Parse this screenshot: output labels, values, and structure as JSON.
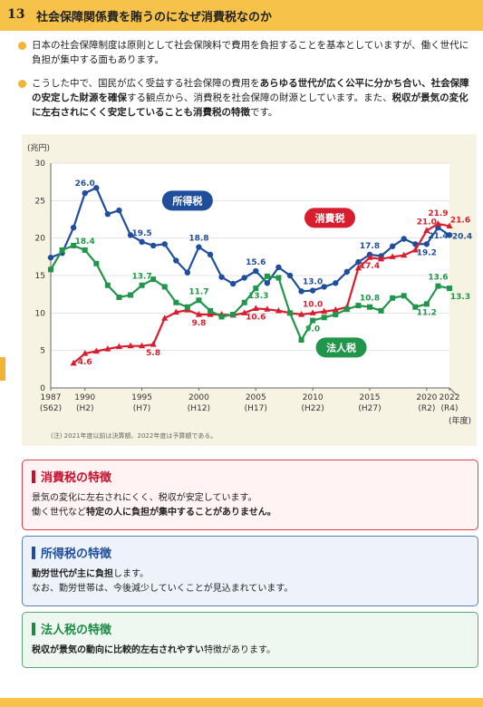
{
  "header": {
    "number": "13",
    "title": "社会保障関係費を賄うのになぜ消費税なのか"
  },
  "bullets": [
    {
      "parts": [
        {
          "t": "日本の社会保障制度は原則として社会保険料で費用を負担することを基本としていますが、働く世代に負担が集中する面もあります。",
          "b": false
        }
      ]
    },
    {
      "parts": [
        {
          "t": "こうした中で、国民が広く受益する社会保障の費用を",
          "b": false
        },
        {
          "t": "あらゆる世代が広く公平に分かち合い、社会保障の安定した財源を確保",
          "b": true
        },
        {
          "t": "する観点から、消費税を社会保障の財源としています。また、",
          "b": false
        },
        {
          "t": "税収が景気の変化に左右されにくく安定していることも消費税の特徴",
          "b": true
        },
        {
          "t": "です。",
          "b": false
        }
      ]
    }
  ],
  "chart_data": {
    "type": "line",
    "y_unit": "(兆円)",
    "x_unit": "(年度)",
    "ylim": [
      0,
      30
    ],
    "yticks": [
      0,
      5,
      10,
      15,
      20,
      25,
      30
    ],
    "xlim": [
      1987,
      2022
    ],
    "xticks": [
      {
        "x": 1987,
        "l1": "1987",
        "l2": "(S62)"
      },
      {
        "x": 1990,
        "l1": "1990",
        "l2": "(H2)"
      },
      {
        "x": 1995,
        "l1": "1995",
        "l2": "(H7)"
      },
      {
        "x": 2000,
        "l1": "2000",
        "l2": "(H12)"
      },
      {
        "x": 2005,
        "l1": "2005",
        "l2": "(H17)"
      },
      {
        "x": 2010,
        "l1": "2010",
        "l2": "(H22)"
      },
      {
        "x": 2015,
        "l1": "2015",
        "l2": "(H27)"
      },
      {
        "x": 2020,
        "l1": "2020",
        "l2": "(R2)"
      },
      {
        "x": 2022,
        "l1": "2022",
        "l2": "(R4)"
      }
    ],
    "note": "(注) 2021年度以前は決算額、2022年度は予算額である。",
    "series": [
      {
        "name": "所得税",
        "color": "#1f4e9c",
        "marker": "circle",
        "legend_pos": [
          1999,
          25.0
        ],
        "x": [
          1987,
          1988,
          1989,
          1990,
          1991,
          1992,
          1993,
          1994,
          1995,
          1996,
          1997,
          1998,
          1999,
          2000,
          2001,
          2002,
          2003,
          2004,
          2005,
          2006,
          2007,
          2008,
          2009,
          2010,
          2011,
          2012,
          2013,
          2014,
          2015,
          2016,
          2017,
          2018,
          2019,
          2020,
          2021,
          2022
        ],
        "values": [
          17.4,
          18.0,
          21.4,
          26.0,
          26.7,
          23.2,
          23.7,
          20.4,
          19.5,
          19.0,
          19.2,
          17.0,
          15.4,
          18.8,
          17.8,
          14.8,
          13.9,
          14.7,
          15.6,
          14.0,
          16.1,
          15.0,
          12.9,
          13.0,
          13.5,
          14.0,
          15.5,
          16.8,
          17.8,
          17.6,
          18.9,
          19.9,
          19.2,
          19.2,
          21.4,
          20.4
        ],
        "labels": [
          {
            "i": 3,
            "t": "26.0",
            "dy": -8
          },
          {
            "i": 8,
            "t": "19.5",
            "dy": -7
          },
          {
            "i": 13,
            "t": "18.8",
            "dy": -7
          },
          {
            "i": 18,
            "t": "15.6",
            "dy": -7
          },
          {
            "i": 23,
            "t": "13.0",
            "dy": -7
          },
          {
            "i": 28,
            "t": "17.8",
            "dy": -7
          },
          {
            "i": 33,
            "t": "19.2",
            "dy": 12
          },
          {
            "i": 34,
            "t": "21.4",
            "dy": 12
          },
          {
            "i": 35,
            "t": "20.4",
            "dx": 14,
            "dy": 4
          }
        ]
      },
      {
        "name": "消費税",
        "color": "#d81e2e",
        "marker": "triangle",
        "legend_pos": [
          2011.5,
          22.7
        ],
        "x": [
          1989,
          1990,
          1991,
          1992,
          1993,
          1994,
          1995,
          1996,
          1997,
          1998,
          1999,
          2000,
          2001,
          2002,
          2003,
          2004,
          2005,
          2006,
          2007,
          2008,
          2009,
          2010,
          2011,
          2012,
          2013,
          2014,
          2015,
          2016,
          2017,
          2018,
          2019,
          2020,
          2021,
          2022
        ],
        "values": [
          3.3,
          4.6,
          4.9,
          5.2,
          5.5,
          5.6,
          5.6,
          5.8,
          9.3,
          10.1,
          10.4,
          9.8,
          9.8,
          9.8,
          9.7,
          10.0,
          10.6,
          10.5,
          10.3,
          10.0,
          9.8,
          10.0,
          10.2,
          10.4,
          10.8,
          16.0,
          17.4,
          17.2,
          17.5,
          17.7,
          18.4,
          21.0,
          21.9,
          21.6
        ],
        "labels": [
          {
            "i": 1,
            "t": "4.6",
            "dy": 12
          },
          {
            "i": 7,
            "t": "5.8",
            "dy": 12
          },
          {
            "i": 11,
            "t": "9.8",
            "dy": 12
          },
          {
            "i": 16,
            "t": "10.6",
            "dy": 12
          },
          {
            "i": 21,
            "t": "10.0",
            "dy": -7
          },
          {
            "i": 26,
            "t": "17.4",
            "dy": 12
          },
          {
            "i": 31,
            "t": "21.0",
            "dy": -7
          },
          {
            "i": 32,
            "t": "21.9",
            "dy": -9
          },
          {
            "i": 33,
            "t": "21.6",
            "dx": 12,
            "dy": -4
          }
        ]
      },
      {
        "name": "法人税",
        "color": "#21964b",
        "marker": "square",
        "legend_pos": [
          2012.5,
          5.4
        ],
        "x": [
          1987,
          1988,
          1989,
          1990,
          1991,
          1992,
          1993,
          1994,
          1995,
          1996,
          1997,
          1998,
          1999,
          2000,
          2001,
          2002,
          2003,
          2004,
          2005,
          2006,
          2007,
          2008,
          2009,
          2010,
          2011,
          2012,
          2013,
          2014,
          2015,
          2016,
          2017,
          2018,
          2019,
          2020,
          2021,
          2022
        ],
        "values": [
          15.8,
          18.4,
          19.0,
          18.4,
          16.6,
          13.7,
          12.1,
          12.4,
          13.7,
          14.5,
          13.5,
          11.4,
          10.8,
          11.7,
          10.3,
          9.5,
          9.8,
          11.4,
          13.3,
          14.9,
          14.7,
          10.0,
          6.4,
          9.0,
          9.4,
          9.8,
          10.5,
          11.0,
          10.8,
          10.3,
          12.0,
          12.3,
          10.8,
          11.2,
          13.6,
          13.3
        ],
        "labels": [
          {
            "i": 3,
            "t": "18.4",
            "dy": -7
          },
          {
            "i": 8,
            "t": "13.7",
            "dy": -7
          },
          {
            "i": 13,
            "t": "11.7",
            "dy": -7
          },
          {
            "i": 18,
            "t": "13.3",
            "dy": 11,
            "dx": 3
          },
          {
            "i": 23,
            "t": "9.0",
            "dy": 12
          },
          {
            "i": 28,
            "t": "10.8",
            "dy": -7
          },
          {
            "i": 33,
            "t": "11.2",
            "dy": 12
          },
          {
            "i": 34,
            "t": "13.6",
            "dy": -7
          },
          {
            "i": 35,
            "t": "13.3",
            "dx": 12,
            "dy": 12
          }
        ]
      }
    ]
  },
  "cards": [
    {
      "title": "消費税の特徴",
      "color": "#c8102e",
      "bg": "#fff3f3",
      "border": "#d9404f",
      "lines": [
        [
          {
            "t": "景気の変化に左右されにくく、税収が安定しています。",
            "b": false
          }
        ],
        [
          {
            "t": "働く世代など",
            "b": false
          },
          {
            "t": "特定の人に負担が集中することがありません。",
            "b": true
          }
        ]
      ]
    },
    {
      "title": "所得税の特徴",
      "color": "#1f4e9c",
      "bg": "#eef3fb",
      "border": "#5a7fbf",
      "lines": [
        [
          {
            "t": "勤労世代が主に負担",
            "b": true
          },
          {
            "t": "します。",
            "b": false
          }
        ],
        [
          {
            "t": "なお、勤労世帯は、今後減少していくことが見込まれています。",
            "b": false
          }
        ]
      ]
    },
    {
      "title": "法人税の特徴",
      "color": "#1e8a44",
      "bg": "#eef8f1",
      "border": "#57a874",
      "lines": [
        [
          {
            "t": "税収が景気の動向に比較的左右されやすい",
            "b": true
          },
          {
            "t": "特徴があります。",
            "b": false
          }
        ]
      ]
    }
  ]
}
